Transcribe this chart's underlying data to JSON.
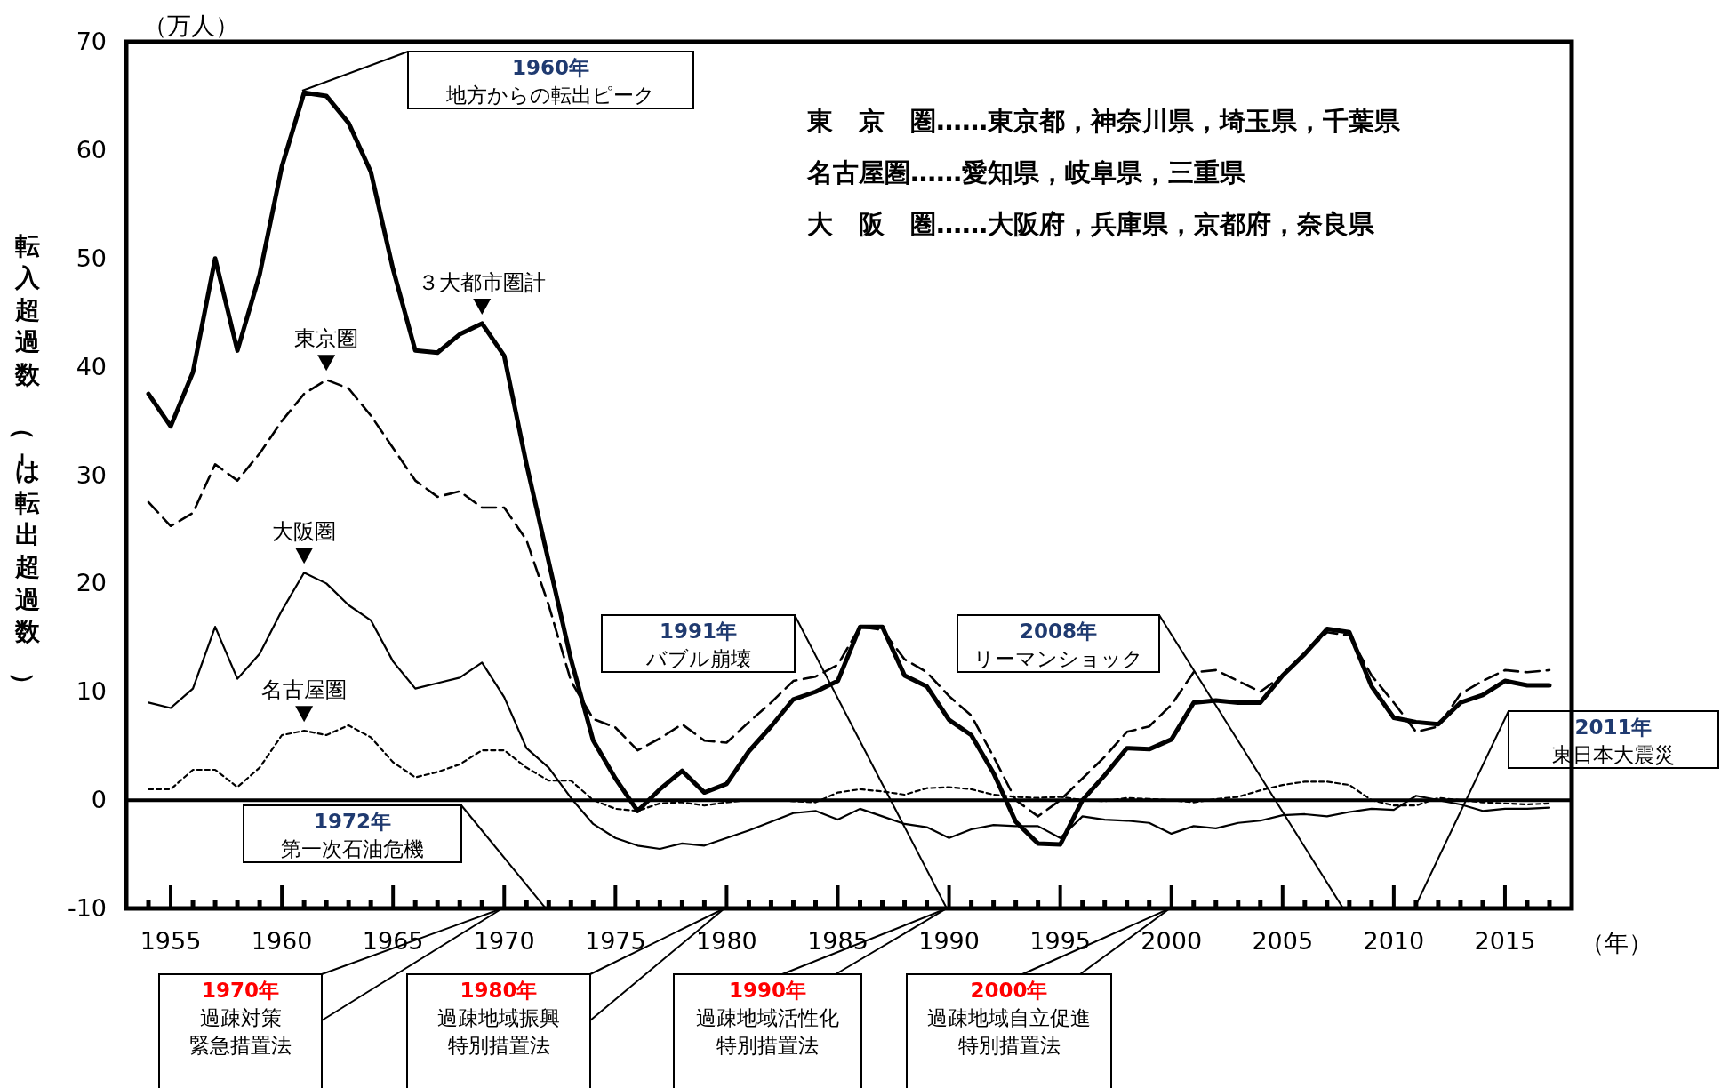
{
  "chart_data": {
    "type": "line",
    "ylabel": "転入超過数（－は転出超過数）",
    "xlabel": "（年）",
    "xlim": [
      1953,
      2018
    ],
    "ylim": [
      -10,
      70
    ],
    "xticks": [
      {
        "value": 1954,
        "label": null
      },
      1955,
      {
        "value": 1956,
        "label": null
      },
      {
        "value": 1957,
        "label": null
      },
      {
        "value": 1958,
        "label": null
      },
      {
        "value": 1959,
        "label": null
      },
      1960,
      {
        "value": 1961,
        "label": null
      },
      {
        "value": 1962,
        "label": null
      },
      {
        "value": 1963,
        "label": null
      },
      {
        "value": 1964,
        "label": null
      },
      1965,
      {
        "value": 1966,
        "label": null
      },
      {
        "value": 1967,
        "label": null
      },
      {
        "value": 1968,
        "label": null
      },
      {
        "value": 1969,
        "label": null
      },
      1970,
      {
        "value": 1971,
        "label": null
      },
      {
        "value": 1972,
        "label": null
      },
      {
        "value": 1973,
        "label": null
      },
      {
        "value": 1974,
        "label": null
      },
      1975,
      {
        "value": 1976,
        "label": null
      },
      {
        "value": 1977,
        "label": null
      },
      {
        "value": 1978,
        "label": null
      },
      {
        "value": 1979,
        "label": null
      },
      1980,
      {
        "value": 1981,
        "label": null
      },
      {
        "value": 1982,
        "label": null
      },
      {
        "value": 1983,
        "label": null
      },
      {
        "value": 1984,
        "label": null
      },
      1985,
      {
        "value": 1986,
        "label": null
      },
      {
        "value": 1987,
        "label": null
      },
      {
        "value": 1988,
        "label": null
      },
      {
        "value": 1989,
        "label": null
      },
      1990,
      {
        "value": 1991,
        "label": null
      },
      {
        "value": 1992,
        "label": null
      },
      {
        "value": 1993,
        "label": null
      },
      {
        "value": 1994,
        "label": null
      },
      1995,
      {
        "value": 1996,
        "label": null
      },
      {
        "value": 1997,
        "label": null
      },
      {
        "value": 1998,
        "label": null
      },
      {
        "value": 1999,
        "label": null
      },
      2000,
      {
        "value": 2001,
        "label": null
      },
      {
        "value": 2002,
        "label": null
      },
      {
        "value": 2003,
        "label": null
      },
      {
        "value": 2004,
        "label": null
      },
      2005,
      {
        "value": 2006,
        "label": null
      },
      {
        "value": 2007,
        "label": null
      },
      {
        "value": 2008,
        "label": null
      },
      {
        "value": 2009,
        "label": null
      },
      2010,
      {
        "value": 2011,
        "label": null
      },
      {
        "value": 2012,
        "label": null
      },
      {
        "value": 2013,
        "label": null
      },
      {
        "value": 2014,
        "label": null
      },
      2015,
      {
        "value": 2016,
        "label": null
      },
      {
        "value": 2017,
        "label": null
      }
    ],
    "yticks": [
      -10,
      0,
      10,
      20,
      30,
      40,
      50,
      60,
      70
    ],
    "x": [
      1954,
      1955,
      1956,
      1957,
      1958,
      1959,
      1960,
      1961,
      1962,
      1963,
      1964,
      1965,
      1966,
      1967,
      1968,
      1969,
      1970,
      1971,
      1972,
      1973,
      1974,
      1975,
      1976,
      1977,
      1978,
      1979,
      1980,
      1981,
      1982,
      1983,
      1984,
      1985,
      1986,
      1987,
      1988,
      1989,
      1990,
      1991,
      1992,
      1993,
      1994,
      1995,
      1996,
      1997,
      1998,
      1999,
      2000,
      2001,
      2002,
      2003,
      2004,
      2005,
      2006,
      2007,
      2008,
      2009,
      2010,
      2011,
      2012,
      2013,
      2014,
      2015,
      2016,
      2017
    ],
    "series": [
      {
        "name": "３大都市圏計",
        "color": "#000000",
        "line_style": "solid",
        "values": [
          37.5,
          34.5,
          39.5,
          50,
          41.5,
          48.5,
          58.5,
          65.3,
          65,
          62.5,
          58,
          49,
          41.5,
          41.3,
          43,
          44,
          41,
          31,
          22,
          13,
          5.5,
          2,
          -1,
          1,
          2.7,
          0.7,
          1.5,
          4.5,
          6.8,
          9.3,
          10,
          11,
          16,
          16,
          11.5,
          10.5,
          7.4,
          6,
          2.5,
          -2,
          -4,
          -4.1,
          0,
          2.3,
          4.8,
          4.7,
          5.6,
          9,
          9.2,
          9,
          9,
          11.5,
          13.5,
          15.8,
          15.5,
          10.5,
          7.6,
          7.2,
          7,
          9,
          9.7,
          11,
          10.6,
          10.6
        ]
      },
      {
        "name": "東京圏",
        "color": "#000000",
        "line_style": "dashed",
        "values": [
          27.5,
          25.3,
          26.5,
          31,
          29.5,
          32,
          35,
          37.5,
          38.8,
          38,
          35.5,
          32.5,
          29.5,
          28,
          28.5,
          27,
          27,
          24,
          18,
          11,
          7.5,
          6.7,
          4.6,
          5.7,
          7,
          5.5,
          5.3,
          7.2,
          9,
          11,
          11.4,
          12.5,
          16,
          15.7,
          13,
          11.8,
          9.6,
          7.8,
          4,
          0,
          -1.5,
          0,
          2,
          4,
          6.3,
          6.8,
          8.8,
          11.8,
          12,
          11,
          10,
          11.5,
          13.5,
          15.5,
          15.2,
          11.5,
          9,
          6.3,
          6.8,
          9.8,
          11,
          12,
          11.8,
          12
        ]
      },
      {
        "name": "大阪圏",
        "color": "#000000",
        "line_style": "solid",
        "values": [
          9,
          8.5,
          10.3,
          16,
          11.2,
          13.5,
          17.5,
          21,
          20,
          18,
          16.6,
          12.8,
          10.3,
          10.8,
          11.3,
          12.7,
          9.5,
          4.8,
          3,
          0.2,
          -2.2,
          -3.5,
          -4.2,
          -4.5,
          -4,
          -4.2,
          -3.5,
          -2.8,
          -2,
          -1.2,
          -1,
          -1.8,
          -0.8,
          -1.5,
          -2.2,
          -2.5,
          -3.5,
          -2.7,
          -2.3,
          -2.4,
          -2.4,
          -3.5,
          -1.5,
          -1.8,
          -1.9,
          -2.1,
          -3.1,
          -2.4,
          -2.6,
          -2.1,
          -1.9,
          -1.4,
          -1.3,
          -1.5,
          -1.1,
          -0.8,
          -0.9,
          0.4,
          0,
          -0.4,
          -1,
          -0.8,
          -0.8,
          -0.7
        ]
      },
      {
        "name": "名古屋圏",
        "color": "#000000",
        "line_style": "dotted",
        "values": [
          1,
          1,
          2.8,
          2.8,
          1.2,
          3,
          6,
          6.4,
          6,
          6.9,
          5.8,
          3.5,
          2.1,
          2.6,
          3.3,
          4.6,
          4.6,
          3,
          1.8,
          1.8,
          0,
          -0.8,
          -1,
          -0.3,
          -0.2,
          -0.5,
          -0.2,
          0,
          0,
          -0.1,
          -0.2,
          0.7,
          1,
          0.8,
          0.5,
          1.1,
          1.2,
          1,
          0.5,
          0.3,
          0.2,
          0.3,
          0,
          -0.1,
          0.2,
          0.1,
          0,
          -0.2,
          0.1,
          0.3,
          0.9,
          1.4,
          1.7,
          1.7,
          1.4,
          0,
          -0.5,
          -0.5,
          0.2,
          0,
          -0.2,
          -0.3,
          -0.4,
          -0.3
        ]
      }
    ],
    "ref_lines": [
      {
        "axis": "y",
        "value": 0
      }
    ],
    "annotations": [
      "（万人）",
      "東　京　圏……東京都，神奈川県，埼玉県，千葉県",
      "名古屋圏……愛知県，岐阜県，三重県",
      "大　阪　圏……大阪府，兵庫県，京都府，奈良県",
      "**1960年**地方からの転出ピーク",
      "**1972年**第一次石油危機",
      "**1991年**バブル崩壊",
      "**2008年**リーマンショック",
      "**2011年**東日本大震災",
      "**1970年**過疎対策緊急措置法",
      "**1980年**過疎地域振興特別措置法",
      "**1990年**過疎地域活性化特別措置法",
      "**2000年**過疎地域自立促進特別措置法"
    ]
  }
}
